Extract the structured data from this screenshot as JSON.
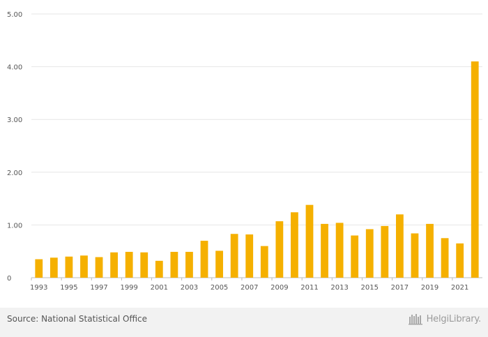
{
  "chart_data": {
    "type": "bar",
    "categories": [
      "1993",
      "1994",
      "1995",
      "1996",
      "1997",
      "1998",
      "1999",
      "2000",
      "2001",
      "2002",
      "2003",
      "2004",
      "2005",
      "2006",
      "2007",
      "2008",
      "2009",
      "2010",
      "2011",
      "2012",
      "2013",
      "2014",
      "2015",
      "2016",
      "2017",
      "2018",
      "2019",
      "2020",
      "2021",
      "2022"
    ],
    "values": [
      0.35,
      0.38,
      0.4,
      0.42,
      0.39,
      0.48,
      0.49,
      0.48,
      0.32,
      0.49,
      0.49,
      0.7,
      0.51,
      0.83,
      0.82,
      0.6,
      1.07,
      1.24,
      1.38,
      1.02,
      1.04,
      0.8,
      0.92,
      0.98,
      1.2,
      0.84,
      1.02,
      0.75,
      0.65,
      4.1
    ],
    "x_tick_labels": [
      "1993",
      "1995",
      "1997",
      "1999",
      "2001",
      "2003",
      "2005",
      "2007",
      "2009",
      "2011",
      "2013",
      "2015",
      "2017",
      "2019",
      "2021"
    ],
    "y_tick_labels": [
      "0",
      "1.00",
      "2.00",
      "3.00",
      "4.00",
      "5.00"
    ],
    "ylim": [
      0,
      5
    ],
    "grid": true,
    "bar_color": "#f5b000"
  },
  "footer": {
    "source": "Source: National Statistical Office",
    "brand": "HelgiLibrary."
  }
}
